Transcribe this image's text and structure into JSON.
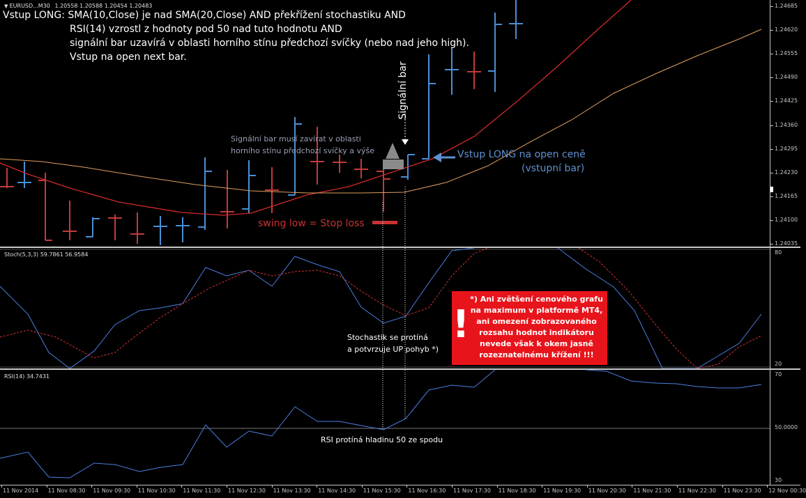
{
  "header": {
    "symbol": "EURUSD...M30",
    "ohlc": "1.20558 1.20588 1.20454 1.20483"
  },
  "annotations": {
    "rule_line1": "Vstup LONG: SMA(10,Close) je nad SMA(20,Close) AND překřížení stochastiku AND",
    "rule_line2": "RSI(14) vzrostl z hodnoty pod 50 nad tuto hodnotu AND",
    "rule_line3": "signální bar uzavírá v oblasti horního stínu předchozí svíčky (nebo nad jeho high).",
    "rule_line4": "Vstup na open next bar.",
    "signal_vertical": "Signální bar",
    "signal_note_line1": "Signální bar musí zavírat v oblasti",
    "signal_note_line2": "horního stínu předchozí svíčky a výše",
    "entry_line1": "Vstup LONG na open ceně",
    "entry_line2": "(vstupní bar)",
    "stop_loss": "swing low = Stop loss",
    "stoch_note_line1": "Stochastik se protíná",
    "stoch_note_line2": "a potvrzuje UP pohyb *)",
    "rsi_note": "RSI protíná hladinu 50 ze spodu",
    "warning_lines": [
      "*) Ani zvětšení cenového grafu",
      "na maximum v platformě MT4,",
      "ani omezení zobrazovaného",
      "rozsahu hodnot indikátoru",
      "nevede však k okem jasně",
      "rozeznatelnému křížení !!!"
    ],
    "warning_mark": "!"
  },
  "price_axis": [
    "1.24685",
    "1.24620",
    "1.24555",
    "1.24490",
    "1.24425",
    "1.24360",
    "1.24295",
    "1.24230",
    "1.24165",
    "1.24100",
    "1.24035"
  ],
  "stoch_panel": {
    "label": "Stoch(5,3,3) 59.7861 56.9584",
    "levels": [
      "80",
      "20"
    ]
  },
  "rsi_panel": {
    "label": "RSI(14) 34.7431",
    "levels": [
      "70",
      "50.0000",
      "30"
    ]
  },
  "time_axis": [
    "11 Nov 2014",
    "11 Nov 08:30",
    "11 Nov 09:30",
    "11 Nov 10:30",
    "11 Nov 11:30",
    "11 Nov 12:30",
    "11 Nov 13:30",
    "11 Nov 14:30",
    "11 Nov 15:30",
    "11 Nov 16:30",
    "11 Nov 17:30",
    "11 Nov 18:30",
    "11 Nov 19:30",
    "11 Nov 20:30",
    "11 Nov 21:30",
    "11 Nov 22:30",
    "11 Nov 23:30",
    "12 Nov 00:30"
  ],
  "colors": {
    "bull": "#4a8fd6",
    "bear": "#c43a3a",
    "sma10": "#d42a2a",
    "sma20": "#e0a060",
    "stoch_main": "#4a7fe0",
    "stoch_signal": "#d43030",
    "rsi": "#4a7fe0",
    "warning_bg": "#e8141b"
  }
}
